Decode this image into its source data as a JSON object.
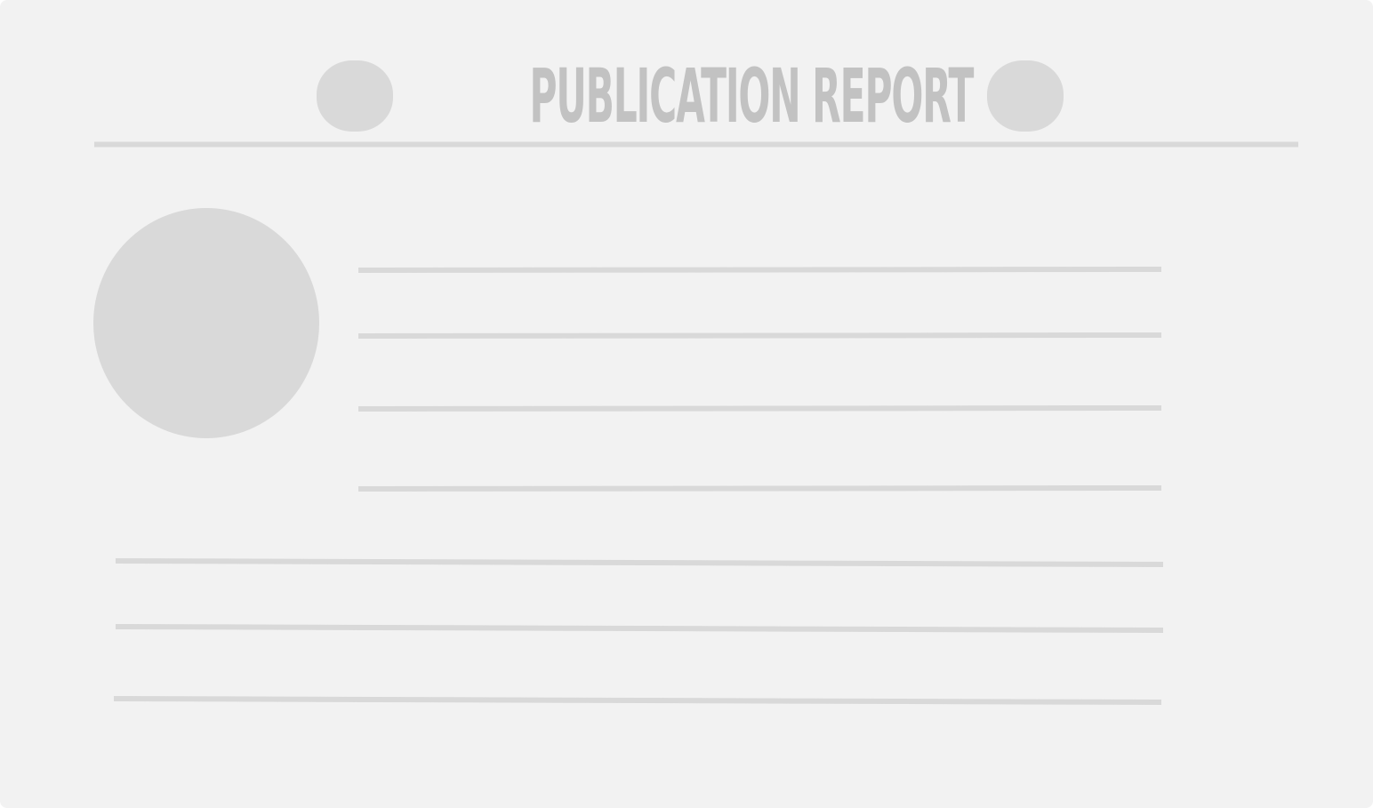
{
  "header": {
    "title": "PUBLICATION REPORT"
  },
  "colors": {
    "background": "#f2f2f2",
    "placeholder": "#d9d9d9",
    "title_text": "#c2c2c2"
  },
  "icons": {
    "title_left": "pill-icon",
    "title_right": "pill-icon",
    "avatar": "avatar-placeholder-icon"
  }
}
